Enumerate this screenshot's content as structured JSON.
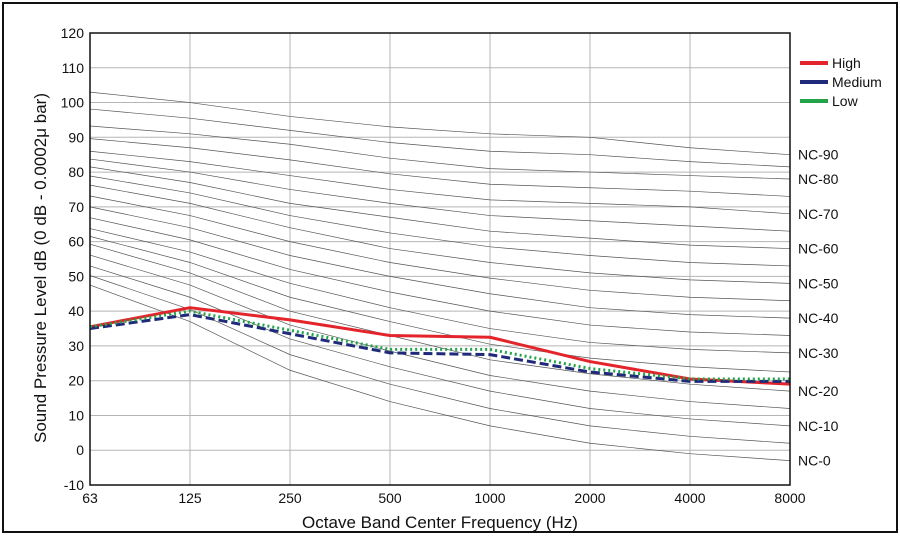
{
  "chart_data": {
    "type": "line",
    "xlabel": "Octave Band Center Frequency (Hz)",
    "ylabel": "Sound Pressure Level dB (0 dB - 0.0002μ bar)",
    "ylim": [
      -10,
      120
    ],
    "yticks": [
      "-10",
      "0",
      "10",
      "20",
      "30",
      "40",
      "50",
      "60",
      "70",
      "80",
      "90",
      "100",
      "110",
      "120"
    ],
    "categories": [
      "63",
      "125",
      "250",
      "500",
      "1000",
      "2000",
      "4000",
      "8000"
    ],
    "grid": true,
    "legend_position": "top-right",
    "series": [
      {
        "name": "High",
        "color": "#e3242b",
        "style": "solid",
        "values": [
          35.5,
          41,
          37.5,
          33,
          32.5,
          25.5,
          20.5,
          19
        ]
      },
      {
        "name": "Medium",
        "color": "#1f2a7a",
        "style": "dashed",
        "values": [
          35,
          39,
          33.5,
          28,
          27.5,
          22.5,
          19.8,
          19.8
        ]
      },
      {
        "name": "Low",
        "color": "#22a34a",
        "style": "dotted",
        "values": [
          35.5,
          40,
          34.5,
          29,
          29,
          23.5,
          20.5,
          20.5
        ]
      }
    ],
    "nc_curves": {
      "color": "#555555",
      "labeled": [
        {
          "label": "NC-90",
          "values": [
            null,
            100,
            96,
            93,
            91,
            90,
            87,
            85
          ]
        },
        {
          "label": "NC-80",
          "values": [
            null,
            91,
            88,
            84,
            81,
            80,
            79,
            78
          ]
        },
        {
          "label": "NC-70",
          "values": [
            null,
            83,
            79,
            75,
            72,
            71,
            70,
            68
          ]
        },
        {
          "label": "NC-60",
          "values": [
            null,
            77,
            71,
            67,
            63,
            61,
            59,
            58
          ]
        },
        {
          "label": "NC-50",
          "values": [
            null,
            71,
            64,
            58,
            54,
            51,
            49,
            48
          ]
        },
        {
          "label": "NC-40",
          "values": [
            null,
            64,
            56,
            50,
            45,
            41,
            39,
            38
          ]
        },
        {
          "label": "NC-30",
          "values": [
            null,
            57,
            48,
            41,
            35,
            31,
            29,
            28
          ]
        },
        {
          "label": "NC-20",
          "values": [
            null,
            51,
            40,
            33,
            26,
            22,
            19,
            17
          ]
        },
        {
          "label": "NC-10",
          "values": [
            null,
            44,
            32,
            24,
            17,
            12,
            9,
            7
          ]
        },
        {
          "label": "NC-0",
          "values": [
            null,
            37,
            23,
            14,
            7,
            2,
            -1,
            -3
          ]
        }
      ],
      "unlabeled": [
        {
          "values": [
            null,
            95.5,
            92,
            88.5,
            86,
            85,
            83,
            81.5
          ]
        },
        {
          "values": [
            null,
            87,
            83.5,
            79.5,
            76.5,
            75.5,
            74.5,
            73
          ]
        },
        {
          "values": [
            null,
            80,
            75,
            71,
            67.5,
            66,
            64.5,
            63
          ]
        },
        {
          "values": [
            null,
            74,
            67.5,
            62.5,
            58.5,
            56,
            54,
            53
          ]
        },
        {
          "values": [
            null,
            67.5,
            60,
            54,
            49.5,
            46,
            44,
            43
          ]
        },
        {
          "values": [
            null,
            60.5,
            52,
            45.5,
            40,
            36,
            34,
            33
          ]
        },
        {
          "values": [
            null,
            54,
            44,
            37,
            30.5,
            26.5,
            24,
            22.5
          ]
        },
        {
          "values": [
            null,
            47.5,
            36,
            28.5,
            21.5,
            17,
            14,
            12
          ]
        },
        {
          "values": [
            null,
            40.5,
            27.5,
            19,
            12,
            7,
            4,
            2
          ]
        }
      ]
    }
  }
}
